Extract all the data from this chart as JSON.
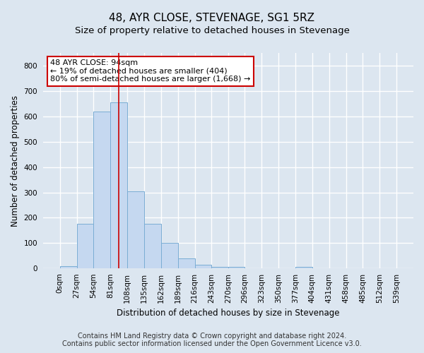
{
  "title": "48, AYR CLOSE, STEVENAGE, SG1 5RZ",
  "subtitle": "Size of property relative to detached houses in Stevenage",
  "xlabel": "Distribution of detached houses by size in Stevenage",
  "ylabel": "Number of detached properties",
  "footer_line1": "Contains HM Land Registry data © Crown copyright and database right 2024.",
  "footer_line2": "Contains public sector information licensed under the Open Government Licence v3.0.",
  "property_size": 94,
  "annotation_line1": "48 AYR CLOSE: 94sqm",
  "annotation_line2": "← 19% of detached houses are smaller (404)",
  "annotation_line3": "80% of semi-detached houses are larger (1,668) →",
  "bin_edges": [
    0,
    27,
    54,
    81,
    108,
    135,
    162,
    189,
    216,
    243,
    270,
    296,
    323,
    350,
    377,
    404,
    431,
    458,
    485,
    512,
    539
  ],
  "bar_heights": [
    10,
    175,
    620,
    655,
    305,
    175,
    100,
    40,
    15,
    5,
    5,
    0,
    0,
    0,
    5,
    0,
    0,
    0,
    0,
    0
  ],
  "bar_color": "#c5d8f0",
  "bar_edge_color": "#7aadd4",
  "vline_color": "#cc0000",
  "vline_x": 94,
  "annotation_box_color": "#cc0000",
  "ylim": [
    0,
    850
  ],
  "yticks": [
    0,
    100,
    200,
    300,
    400,
    500,
    600,
    700,
    800
  ],
  "background_color": "#dce6f0",
  "grid_color": "#ffffff",
  "title_fontsize": 11,
  "subtitle_fontsize": 9.5,
  "axis_label_fontsize": 8.5,
  "tick_fontsize": 7.5,
  "annotation_fontsize": 8,
  "footer_fontsize": 7
}
